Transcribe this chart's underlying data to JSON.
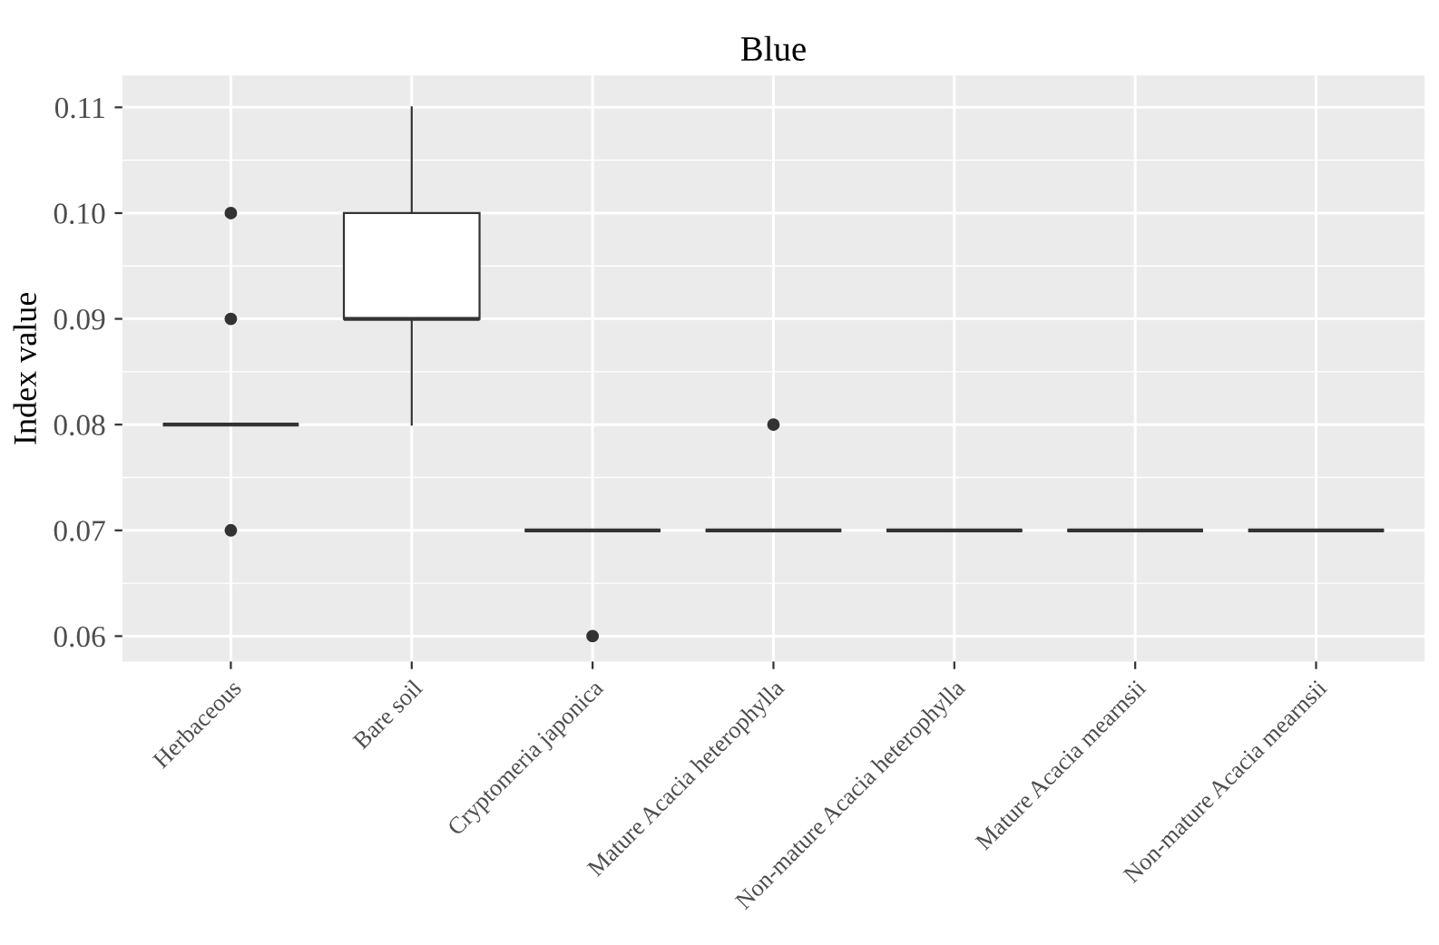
{
  "chart_data": {
    "type": "box",
    "title": "Blue",
    "ylabel": "Index value",
    "categories": [
      "Herbaceous",
      "Bare soil",
      "Cryptomeria japonica",
      "Mature Acacia heterophylla",
      "Non-mature Acacia heterophylla",
      "Mature Acacia mearnsii",
      "Non-mature Acacia mearnsii"
    ],
    "boxes": [
      {
        "low": 0.08,
        "q1": 0.08,
        "median": 0.08,
        "q3": 0.08,
        "high": 0.08,
        "outliers": [
          0.07,
          0.09,
          0.1
        ]
      },
      {
        "low": 0.08,
        "q1": 0.09,
        "median": 0.09,
        "q3": 0.1,
        "high": 0.11
      },
      {
        "low": 0.07,
        "q1": 0.07,
        "median": 0.07,
        "q3": 0.07,
        "high": 0.07,
        "outliers": [
          0.06
        ]
      },
      {
        "low": 0.07,
        "q1": 0.07,
        "median": 0.07,
        "q3": 0.07,
        "high": 0.07,
        "outliers": [
          0.08
        ]
      },
      {
        "low": 0.07,
        "q1": 0.07,
        "median": 0.07,
        "q3": 0.07,
        "high": 0.07
      },
      {
        "low": 0.07,
        "q1": 0.07,
        "median": 0.07,
        "q3": 0.07,
        "high": 0.07
      },
      {
        "low": 0.07,
        "q1": 0.07,
        "median": 0.07,
        "q3": 0.07,
        "high": 0.07
      }
    ],
    "ylim": [
      0.0576,
      0.113
    ],
    "yticks": [
      {
        "value": 0.06,
        "label": "0.06"
      },
      {
        "value": 0.07,
        "label": "0.07"
      },
      {
        "value": 0.08,
        "label": "0.08"
      },
      {
        "value": 0.09,
        "label": "0.09"
      },
      {
        "value": 0.1,
        "label": "0.10"
      },
      {
        "value": 0.11,
        "label": "0.11"
      }
    ],
    "grid": true
  }
}
